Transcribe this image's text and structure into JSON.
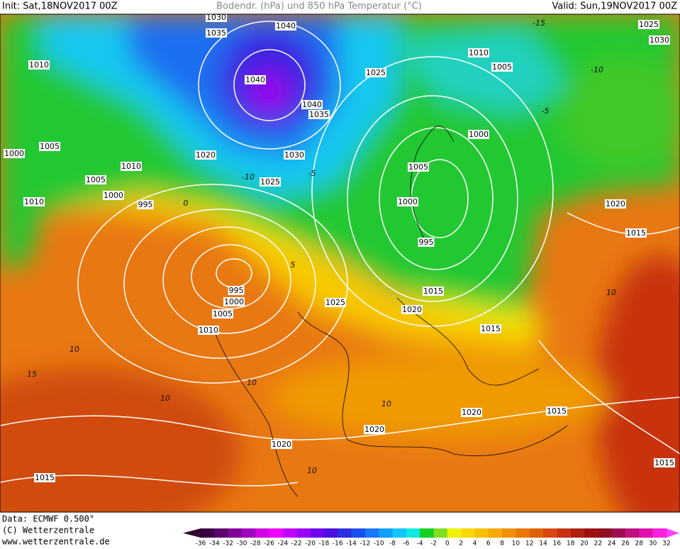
{
  "header": {
    "init": "Init: Sat,18NOV2017 00Z",
    "title": "Bodendr. (hPa) und 850 hPa Temperatur (°C)",
    "valid": "Valid: Sun,19NOV2017 00Z"
  },
  "footer": {
    "data": "Data: ECMWF  0.500°",
    "copyright": "(C) Wetterzentrale",
    "url": "www.wetterzentrale.de"
  },
  "isobar_labels": [
    "1030",
    "1035",
    "1040",
    "1010",
    "1040",
    "1040",
    "1035",
    "1030",
    "1020",
    "1025",
    "1005",
    "1000",
    "1010",
    "1005",
    "1000",
    "1010",
    "995",
    "995",
    "1000",
    "1005",
    "1010",
    "1025",
    "1020",
    "1015",
    "995",
    "1000",
    "1005",
    "1000",
    "1005",
    "1010",
    "1025",
    "1025",
    "1030",
    "1020",
    "1015",
    "1015",
    "1015",
    "1020",
    "1020",
    "1020",
    "1015",
    "1015"
  ],
  "temperature_labels": [
    "-10",
    "-5",
    "0",
    "5",
    "10",
    "15",
    "10",
    "10",
    "10",
    "10",
    "10",
    "-5",
    "-10",
    "-15"
  ],
  "colorbar": {
    "ticks": [
      -36,
      -34,
      -32,
      -30,
      -28,
      -26,
      -24,
      -22,
      -20,
      -18,
      -16,
      -14,
      -12,
      -10,
      -8,
      -6,
      -4,
      -2,
      0,
      2,
      4,
      6,
      8,
      10,
      12,
      14,
      16,
      18,
      20,
      22,
      24,
      26,
      28,
      30,
      32
    ],
    "colors": [
      "#3a0040",
      "#5c0070",
      "#80009a",
      "#a000c0",
      "#d000e0",
      "#f000ff",
      "#c000ff",
      "#9a00ff",
      "#7000f0",
      "#4a10e0",
      "#2a30e0",
      "#1a50f0",
      "#1a78ff",
      "#10a0ff",
      "#10c8ff",
      "#10e8e0",
      "#10d020",
      "#80e020",
      "#f0f000",
      "#f8d800",
      "#f8c000",
      "#f8a800",
      "#f09000",
      "#e87800",
      "#e06000",
      "#d84810",
      "#c83010",
      "#b02010",
      "#a01010",
      "#901020",
      "#a01050",
      "#c01080",
      "#e010b0",
      "#ff20e0"
    ],
    "under_color": "#300030",
    "over_color": "#ff40ff"
  }
}
